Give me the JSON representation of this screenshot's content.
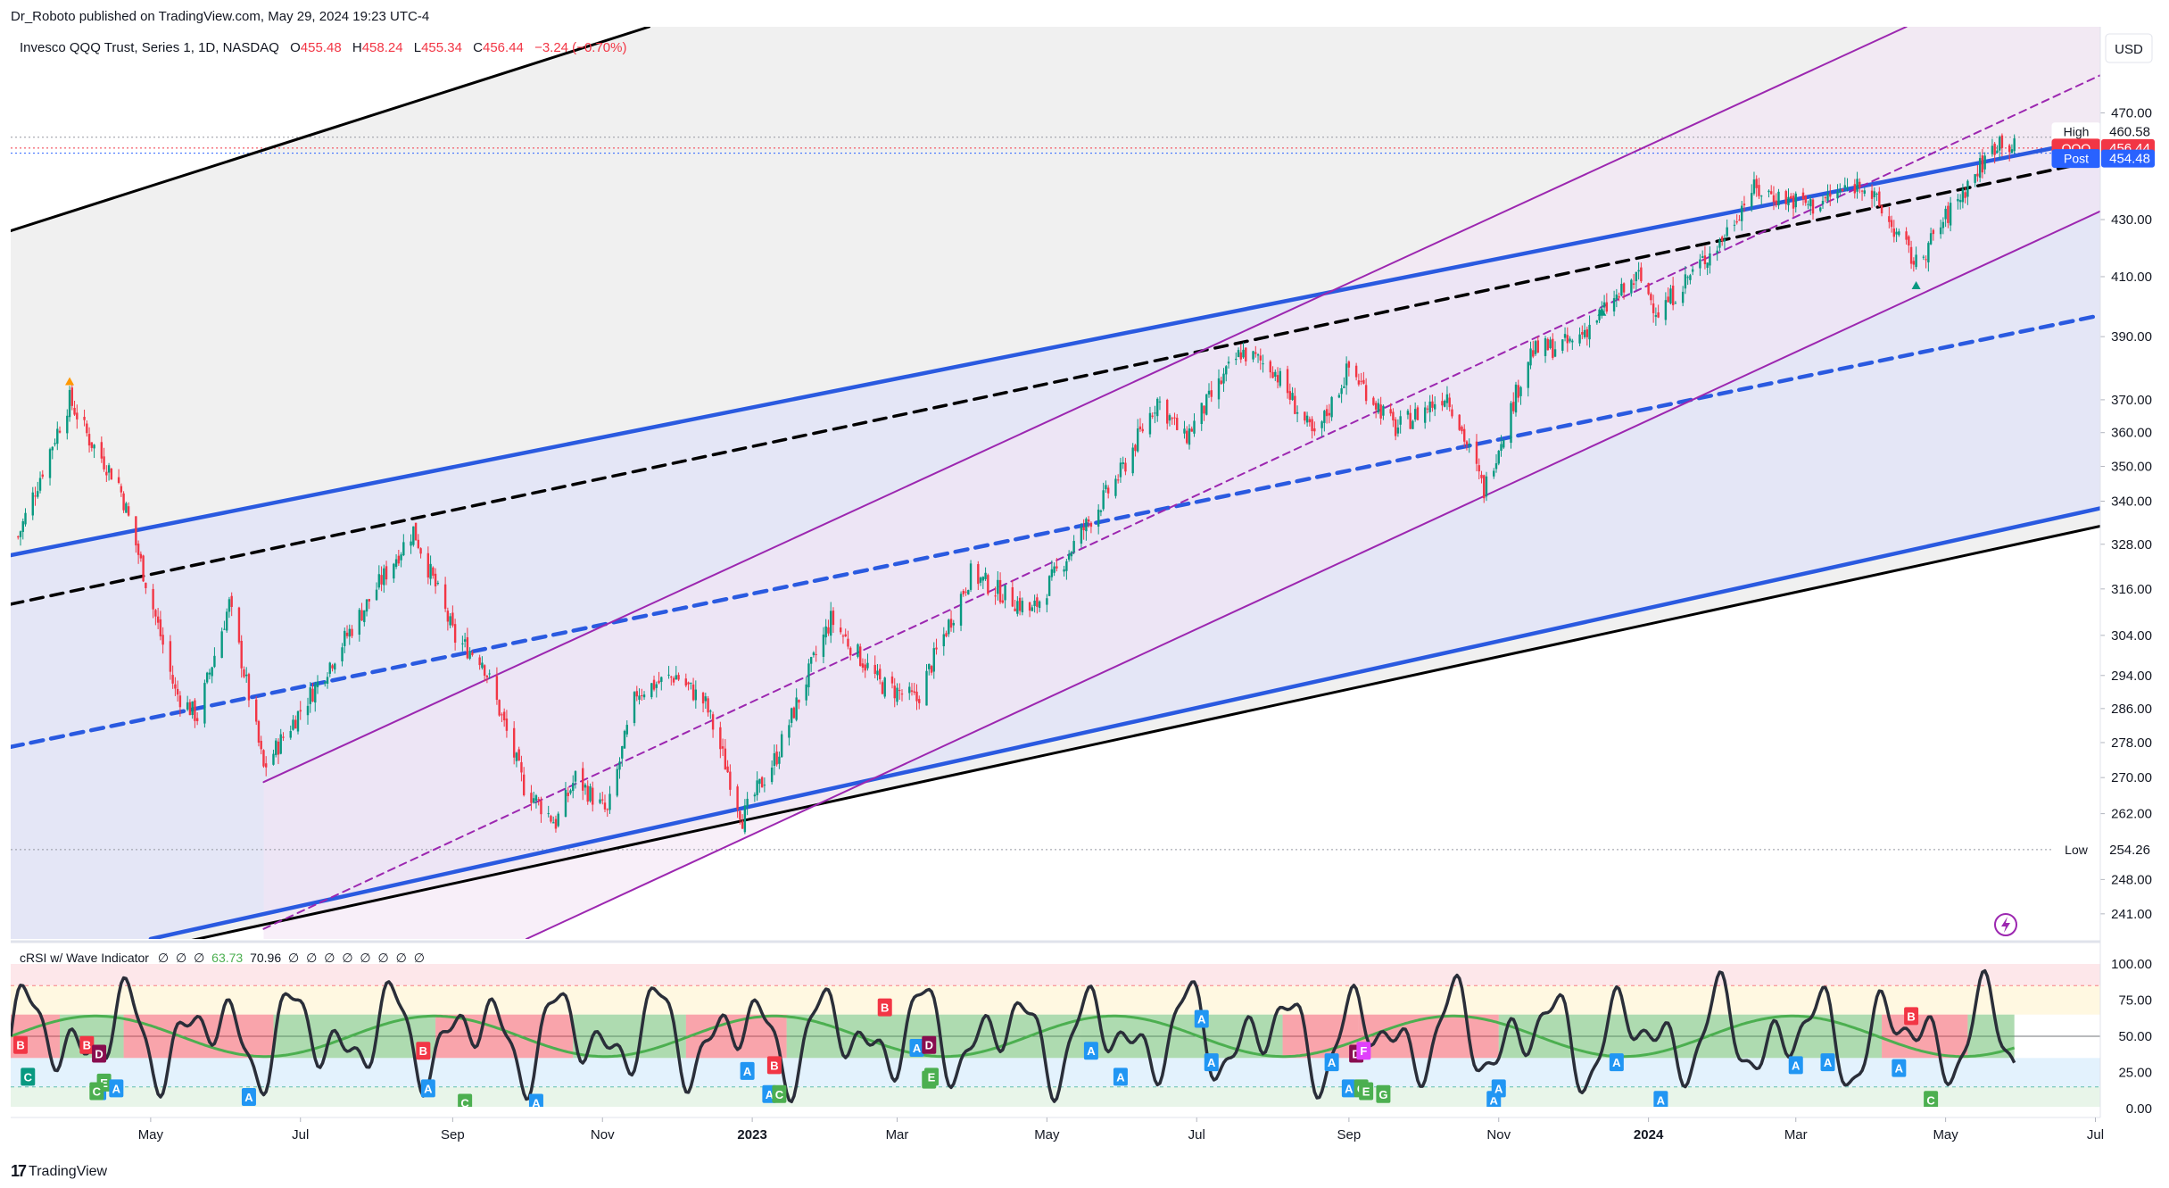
{
  "publisher_line": "Dr_Roboto published on TradingView.com, May 29, 2024 19:23 UTC-4",
  "brand": {
    "mark": "17",
    "name": "TradingView"
  },
  "currency": "USD",
  "legend": {
    "symbol_text": "Invesco QQQ Trust, Series 1, 1D, NASDAQ",
    "o_label": "O",
    "o_value": "455.48",
    "h_label": "H",
    "h_value": "458.24",
    "l_label": "L",
    "l_value": "455.34",
    "c_label": "C",
    "c_value": "456.44",
    "change": "−3.24 (−0.70%)"
  },
  "price_tags": [
    {
      "label": "High",
      "value": "460.58",
      "price": 460.58,
      "color": "#ffffff",
      "text_color": "#131722"
    },
    {
      "label": "QQQ",
      "value": "456.44",
      "price": 456.44,
      "color": "#f23645",
      "text_color": "#ffffff"
    },
    {
      "label": "Post",
      "value": "454.48",
      "price": 454.48,
      "color": "#2962ff",
      "text_color": "#ffffff"
    },
    {
      "label": "Low",
      "value": "254.26",
      "price": 254.26,
      "color": "#ffffff",
      "text_color": "#131722"
    }
  ],
  "indicator": {
    "legend_text": "cRSI w/ Wave Indicator",
    "legend_values": [
      "∅",
      "∅",
      "∅",
      "63.73",
      "70.96",
      "∅",
      "∅",
      "∅",
      "∅",
      "∅",
      "∅",
      "∅",
      "∅"
    ],
    "axis_ticks": [
      "100.00",
      "75.00",
      "50.00",
      "25.00",
      "0.00"
    ],
    "axis_values": [
      100,
      75,
      50,
      25,
      0
    ]
  },
  "colors": {
    "up": "#089981",
    "down": "#f23645",
    "blue_channel": "#2a5ae0",
    "purple_channel": "#9c27b0",
    "black_line": "#000000",
    "crsi_line": "#2a2e39",
    "wave_green": "#4caf50",
    "wave_red": "#f23645"
  },
  "chart_data": {
    "type": "candlestick",
    "symbol": "QQQ",
    "scale": "log",
    "y_ticks": [
      470,
      430,
      410,
      390,
      370,
      360,
      350,
      340,
      328,
      316,
      304,
      294,
      286,
      278,
      270,
      262,
      248,
      241
    ],
    "x_ticks": [
      "May",
      "Jul",
      "Sep",
      "Nov",
      "2023",
      "Mar",
      "May",
      "Jul",
      "Sep",
      "Nov",
      "2024",
      "Mar",
      "May",
      "Jul"
    ],
    "x_tick_dates": [
      "2022-05-01",
      "2022-07-01",
      "2022-09-01",
      "2022-11-01",
      "2023-01-01",
      "2023-03-01",
      "2023-05-01",
      "2023-07-01",
      "2023-09-01",
      "2023-11-01",
      "2024-01-01",
      "2024-03-01",
      "2024-05-01",
      "2024-07-01"
    ],
    "x_range": [
      "2022-03-05",
      "2024-07-03"
    ],
    "y_range": [
      236,
      505
    ],
    "price_path": [
      {
        "date": "2022-03-08",
        "price": 330
      },
      {
        "date": "2022-03-29",
        "price": 370
      },
      {
        "date": "2022-04-06",
        "price": 358
      },
      {
        "date": "2022-04-18",
        "price": 345
      },
      {
        "date": "2022-04-29",
        "price": 318
      },
      {
        "date": "2022-05-11",
        "price": 290
      },
      {
        "date": "2022-05-20",
        "price": 284
      },
      {
        "date": "2022-06-02",
        "price": 312
      },
      {
        "date": "2022-06-16",
        "price": 272
      },
      {
        "date": "2022-07-08",
        "price": 292
      },
      {
        "date": "2022-07-28",
        "price": 312
      },
      {
        "date": "2022-08-16",
        "price": 332
      },
      {
        "date": "2022-09-02",
        "price": 303
      },
      {
        "date": "2022-09-13",
        "price": 298
      },
      {
        "date": "2022-09-30",
        "price": 268
      },
      {
        "date": "2022-10-13",
        "price": 260
      },
      {
        "date": "2022-10-21",
        "price": 270
      },
      {
        "date": "2022-11-03",
        "price": 262
      },
      {
        "date": "2022-11-15",
        "price": 290
      },
      {
        "date": "2022-12-01",
        "price": 294
      },
      {
        "date": "2022-12-13",
        "price": 287
      },
      {
        "date": "2022-12-28",
        "price": 261
      },
      {
        "date": "2023-01-11",
        "price": 275
      },
      {
        "date": "2023-02-02",
        "price": 308
      },
      {
        "date": "2023-02-22",
        "price": 292
      },
      {
        "date": "2023-03-09",
        "price": 288
      },
      {
        "date": "2023-03-31",
        "price": 320
      },
      {
        "date": "2023-04-25",
        "price": 310
      },
      {
        "date": "2023-05-31",
        "price": 348
      },
      {
        "date": "2023-06-15",
        "price": 370
      },
      {
        "date": "2023-06-26",
        "price": 358
      },
      {
        "date": "2023-07-19",
        "price": 385
      },
      {
        "date": "2023-08-01",
        "price": 380
      },
      {
        "date": "2023-08-18",
        "price": 358
      },
      {
        "date": "2023-09-01",
        "price": 380
      },
      {
        "date": "2023-09-20",
        "price": 361
      },
      {
        "date": "2023-10-11",
        "price": 372
      },
      {
        "date": "2023-10-26",
        "price": 343
      },
      {
        "date": "2023-11-14",
        "price": 385
      },
      {
        "date": "2023-12-01",
        "price": 388
      },
      {
        "date": "2023-12-28",
        "price": 410
      },
      {
        "date": "2024-01-05",
        "price": 398
      },
      {
        "date": "2024-01-31",
        "price": 423
      },
      {
        "date": "2024-02-12",
        "price": 441
      },
      {
        "date": "2024-03-08",
        "price": 435
      },
      {
        "date": "2024-03-28",
        "price": 444
      },
      {
        "date": "2024-04-19",
        "price": 414
      },
      {
        "date": "2024-05-08",
        "price": 440
      },
      {
        "date": "2024-05-23",
        "price": 460
      },
      {
        "date": "2024-05-29",
        "price": 456.44
      }
    ],
    "trend_lines": [
      {
        "style": "solid",
        "color": "#000000",
        "start": {
          "date": "2022-03-05",
          "price": 426
        },
        "end": {
          "date": "2022-11-20",
          "price": 505
        }
      },
      {
        "style": "solid",
        "color": "#000000",
        "start": {
          "date": "2022-05-01",
          "price": 234
        },
        "end": {
          "date": "2024-07-03",
          "price": 333
        }
      },
      {
        "style": "solid",
        "color": "#2a5ae0",
        "start": {
          "date": "2022-03-05",
          "price": 325
        },
        "end": {
          "date": "2024-07-03",
          "price": 460
        }
      },
      {
        "style": "solid",
        "color": "#2a5ae0",
        "start": {
          "date": "2022-05-01",
          "price": 236
        },
        "end": {
          "date": "2024-07-03",
          "price": 338
        }
      },
      {
        "style": "dashed",
        "color": "#000000",
        "start": {
          "date": "2022-03-05",
          "price": 312
        },
        "end": {
          "date": "2024-07-03",
          "price": 452
        }
      },
      {
        "style": "dashed",
        "color": "#2a5ae0",
        "start": {
          "date": "2022-03-05",
          "price": 277
        },
        "end": {
          "date": "2024-07-03",
          "price": 397
        }
      },
      {
        "style": "solid",
        "color": "#9c27b0",
        "start": {
          "date": "2022-06-16",
          "price": 269
        },
        "end": {
          "date": "2024-04-15",
          "price": 505
        }
      },
      {
        "style": "solid",
        "color": "#9c27b0",
        "start": {
          "date": "2022-10-01",
          "price": 236
        },
        "end": {
          "date": "2024-07-03",
          "price": 433
        }
      },
      {
        "style": "dashed",
        "color": "#9c27b0",
        "start": {
          "date": "2022-06-16",
          "price": 238
        },
        "end": {
          "date": "2024-07-03",
          "price": 485
        }
      }
    ]
  }
}
